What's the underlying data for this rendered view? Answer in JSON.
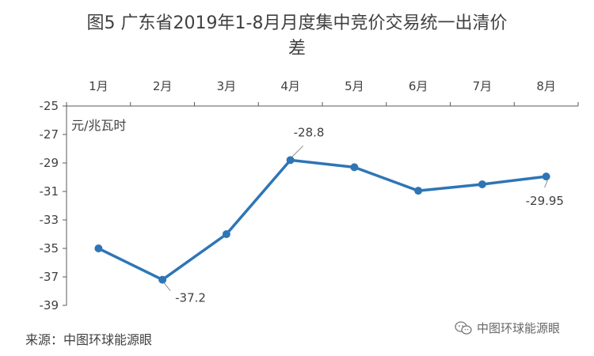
{
  "title_line1": "图5 广东省2019年1-8月月度集中竞价交易统一出清价",
  "title_line2": "差",
  "unit_label": "元/兆瓦时",
  "source_text": "来源：中图环球能源眼",
  "watermark_text": "中图环球能源眼",
  "colors": {
    "line": "#2E75B6",
    "axis": "#595959",
    "text": "#404040"
  },
  "chart_data": {
    "type": "line",
    "categories": [
      "1月",
      "2月",
      "3月",
      "4月",
      "5月",
      "6月",
      "7月",
      "8月"
    ],
    "series": [
      {
        "values": [
          -35.0,
          -37.2,
          -34.0,
          -28.8,
          -29.3,
          -30.95,
          -30.5,
          -29.95
        ]
      }
    ],
    "ylim": [
      -39,
      -25
    ],
    "yticks": [
      -25,
      -27,
      -29,
      -31,
      -33,
      -35,
      -37,
      -39
    ],
    "labeled_points": [
      {
        "index": 1,
        "text": "-37.2"
      },
      {
        "index": 3,
        "text": "-28.8"
      },
      {
        "index": 7,
        "text": "-29.95"
      }
    ]
  }
}
